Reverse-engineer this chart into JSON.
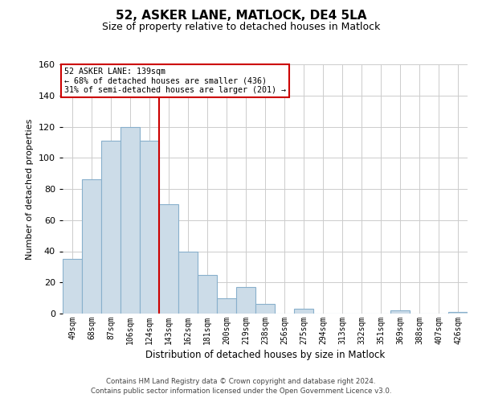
{
  "title": "52, ASKER LANE, MATLOCK, DE4 5LA",
  "subtitle": "Size of property relative to detached houses in Matlock",
  "xlabel": "Distribution of detached houses by size in Matlock",
  "ylabel": "Number of detached properties",
  "bin_labels": [
    "49sqm",
    "68sqm",
    "87sqm",
    "106sqm",
    "124sqm",
    "143sqm",
    "162sqm",
    "181sqm",
    "200sqm",
    "219sqm",
    "238sqm",
    "256sqm",
    "275sqm",
    "294sqm",
    "313sqm",
    "332sqm",
    "351sqm",
    "369sqm",
    "388sqm",
    "407sqm",
    "426sqm"
  ],
  "bar_heights": [
    35,
    86,
    111,
    120,
    111,
    70,
    40,
    25,
    10,
    17,
    6,
    0,
    3,
    0,
    0,
    0,
    0,
    2,
    0,
    0,
    1
  ],
  "bar_color": "#ccdce8",
  "bar_edgecolor": "#88b0cc",
  "vline_color": "#cc0000",
  "ylim": [
    0,
    160
  ],
  "yticks": [
    0,
    20,
    40,
    60,
    80,
    100,
    120,
    140,
    160
  ],
  "annotation_title": "52 ASKER LANE: 139sqm",
  "annotation_line1": "← 68% of detached houses are smaller (436)",
  "annotation_line2": "31% of semi-detached houses are larger (201) →",
  "annotation_box_color": "#ffffff",
  "annotation_box_edgecolor": "#cc0000",
  "footnote1": "Contains HM Land Registry data © Crown copyright and database right 2024.",
  "footnote2": "Contains public sector information licensed under the Open Government Licence v3.0.",
  "background_color": "#ffffff",
  "grid_color": "#cccccc"
}
